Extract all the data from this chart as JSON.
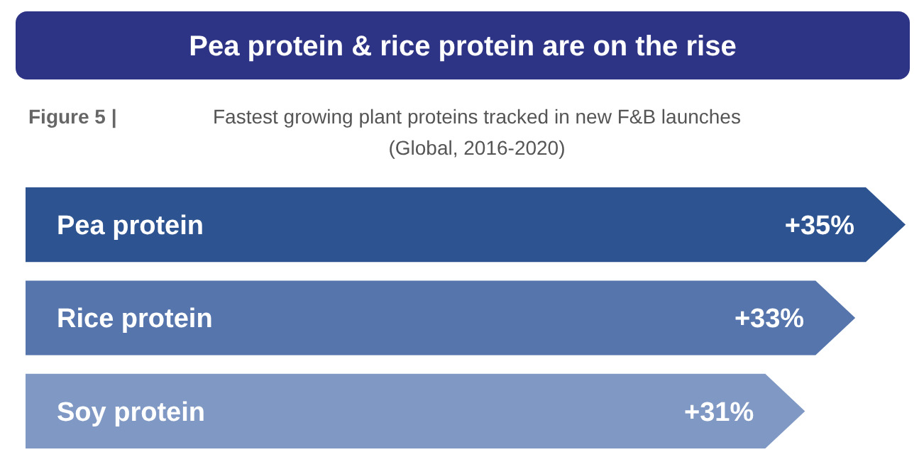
{
  "chart_data": {
    "type": "bar",
    "orientation": "horizontal",
    "title": "Pea protein & rice protein are on the rise",
    "subtitle": "Fastest growing plant proteins tracked in new F&B launches (Global, 2016-2020)",
    "annotations": [
      "Figure 5 |"
    ],
    "categories": [
      "Pea protein",
      "Rice protein",
      "Soy protein"
    ],
    "values": [
      35,
      33,
      31
    ],
    "colors": [
      "#2d5491",
      "#5675ac",
      "#7f98c4"
    ],
    "value_labels": [
      "+35%",
      "+33%",
      "+31%"
    ]
  }
}
